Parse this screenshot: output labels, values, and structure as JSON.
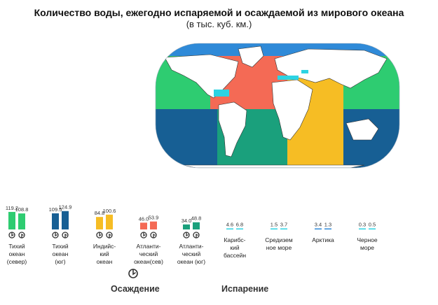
{
  "chart_data": {
    "type": "bar",
    "title": "Количество воды, ежегодно испаряемой и осаждаемой из мирового океана",
    "subtitle": "(в тыс. куб. км.)",
    "categories": [
      [
        "Тихий",
        "океан",
        "(север)"
      ],
      [
        "Тихий",
        "океан",
        "(юг)"
      ],
      [
        "Индийс-",
        "кий",
        "океан"
      ],
      [
        "Атланти-",
        "ческий",
        "океан(сев)"
      ],
      [
        "Атланти-",
        "ческий",
        "океан (юг)"
      ],
      [
        "Карибс-",
        "кий",
        "бассейн"
      ],
      [
        "Средизем",
        "ное море"
      ],
      [
        "Арктика"
      ],
      [
        "Черное",
        "море"
      ]
    ],
    "colors": [
      "#2ecc71",
      "#175f94",
      "#f6bd24",
      "#f46a55",
      "#1aa07c",
      "#2cd3e3",
      "#2cd3e3",
      "#2f8ad8",
      "#2cd3e3"
    ],
    "series": [
      {
        "name": "Осаждение",
        "values": [
          119.2,
          109.5,
          84.8,
          46.0,
          34.0,
          4.6,
          1.5,
          3.4,
          0.3
        ]
      },
      {
        "name": "Испарение",
        "values": [
          108.8,
          124.9,
          100.6,
          53.9,
          48.8,
          6.8,
          3.7,
          1.3,
          0.5
        ]
      }
    ],
    "value_labels": [
      [
        "119.2",
        "109.5",
        "84.8",
        "46.0",
        "34.0",
        "4.6",
        "1.5",
        "3.4",
        "0.3"
      ],
      [
        "108.8",
        "124.9",
        "100.6",
        "53.9",
        "48.8",
        "6.8",
        "3.7",
        "1.3",
        "0.5"
      ]
    ],
    "ylim": [
      0,
      130
    ],
    "legend": [
      {
        "label": "Осаждение",
        "icon": "precipitation-icon"
      },
      {
        "label": "Испарение",
        "icon": "evaporation-icon"
      }
    ],
    "map": {
      "icon": "world-ocean-map",
      "colors": {
        "north_pacific": "#2ecc71",
        "south_pacific": "#175f94",
        "indian": "#f6bd24",
        "north_atlantic": "#f46a55",
        "south_atlantic": "#1aa07c",
        "caribbean": "#2cd3e3",
        "arctic": "#2f8ad8",
        "land": "#ffffff"
      }
    }
  }
}
